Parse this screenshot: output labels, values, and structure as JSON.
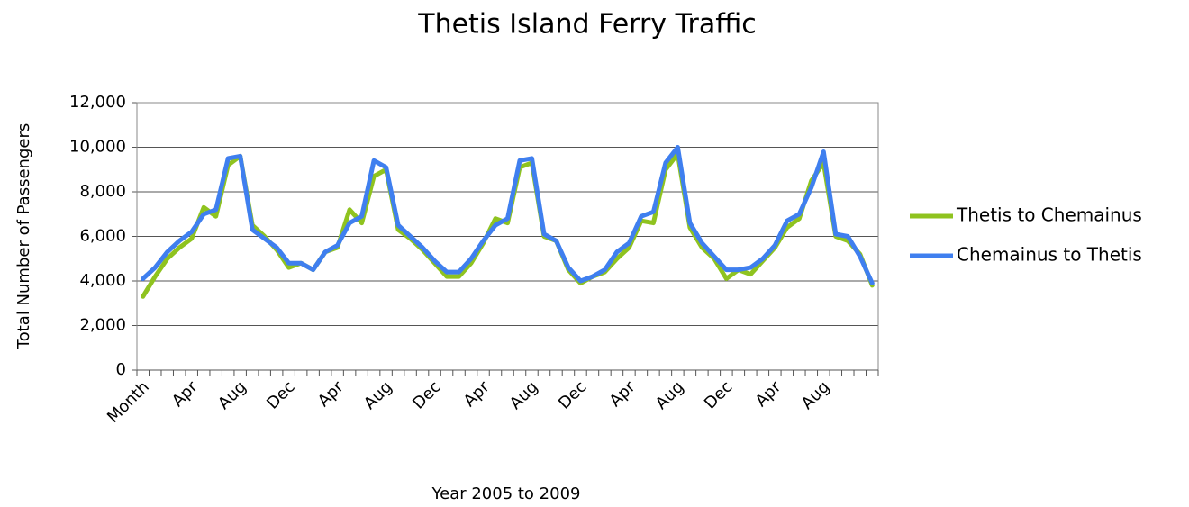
{
  "chart_data": {
    "type": "line",
    "title": "Thetis Island Ferry Traffic",
    "x_label": "Year 2005 to 2009",
    "y_label": "Total Number of Passengers",
    "categories": [
      "Month",
      null,
      null,
      null,
      "Apr",
      null,
      null,
      null,
      "Aug",
      null,
      null,
      null,
      "Dec",
      null,
      null,
      null,
      "Apr",
      null,
      null,
      null,
      "Aug",
      null,
      null,
      null,
      "Dec",
      null,
      null,
      null,
      "Apr",
      null,
      null,
      null,
      "Aug",
      null,
      null,
      null,
      "Dec",
      null,
      null,
      null,
      "Apr",
      null,
      null,
      null,
      "Aug",
      null,
      null,
      null,
      "Dec",
      null,
      null,
      null,
      "Apr",
      null,
      null,
      null,
      "Aug",
      null,
      null,
      null,
      null
    ],
    "series": [
      {
        "name": "Thetis to Chemainus",
        "color": "#8fc31f",
        "values": [
          3300,
          4200,
          5000,
          5500,
          5900,
          7300,
          6900,
          9200,
          9600,
          6500,
          6000,
          5400,
          4600,
          4800,
          4500,
          5300,
          5500,
          7200,
          6600,
          8700,
          9000,
          6300,
          5900,
          5400,
          4800,
          4200,
          4200,
          4800,
          5700,
          6800,
          6600,
          9100,
          9300,
          6000,
          5800,
          4500,
          3900,
          4200,
          4400,
          5000,
          5500,
          6700,
          6600,
          9000,
          9700,
          6400,
          5500,
          5000,
          4100,
          4500,
          4300,
          4900,
          5500,
          6400,
          6800,
          8500,
          9300,
          6000,
          5800,
          5200,
          3800
        ]
      },
      {
        "name": "Chemainus to Thetis",
        "color": "#3f7fef",
        "values": [
          4100,
          4600,
          5300,
          5800,
          6200,
          7000,
          7200,
          9500,
          9600,
          6300,
          5900,
          5500,
          4800,
          4800,
          4500,
          5300,
          5600,
          6600,
          6900,
          9400,
          9100,
          6500,
          6000,
          5500,
          4900,
          4400,
          4400,
          5000,
          5800,
          6500,
          6800,
          9400,
          9500,
          6100,
          5800,
          4600,
          4000,
          4200,
          4500,
          5300,
          5700,
          6900,
          7100,
          9300,
          10000,
          6600,
          5700,
          5100,
          4500,
          4500,
          4600,
          5000,
          5600,
          6700,
          7000,
          8200,
          9800,
          6100,
          6000,
          5100,
          3900
        ]
      }
    ],
    "ylim": [
      0,
      12000
    ],
    "yticks": [
      0,
      {
        "value": 2000,
        "label": "2,000"
      },
      {
        "value": 4000,
        "label": "4,000"
      },
      {
        "value": 6000,
        "label": "6,000"
      },
      {
        "value": 8000,
        "label": "8,000"
      },
      {
        "value": 10000,
        "label": "10,000"
      },
      {
        "value": 12000,
        "label": "12,000"
      }
    ],
    "grid": true,
    "legend": "right"
  }
}
